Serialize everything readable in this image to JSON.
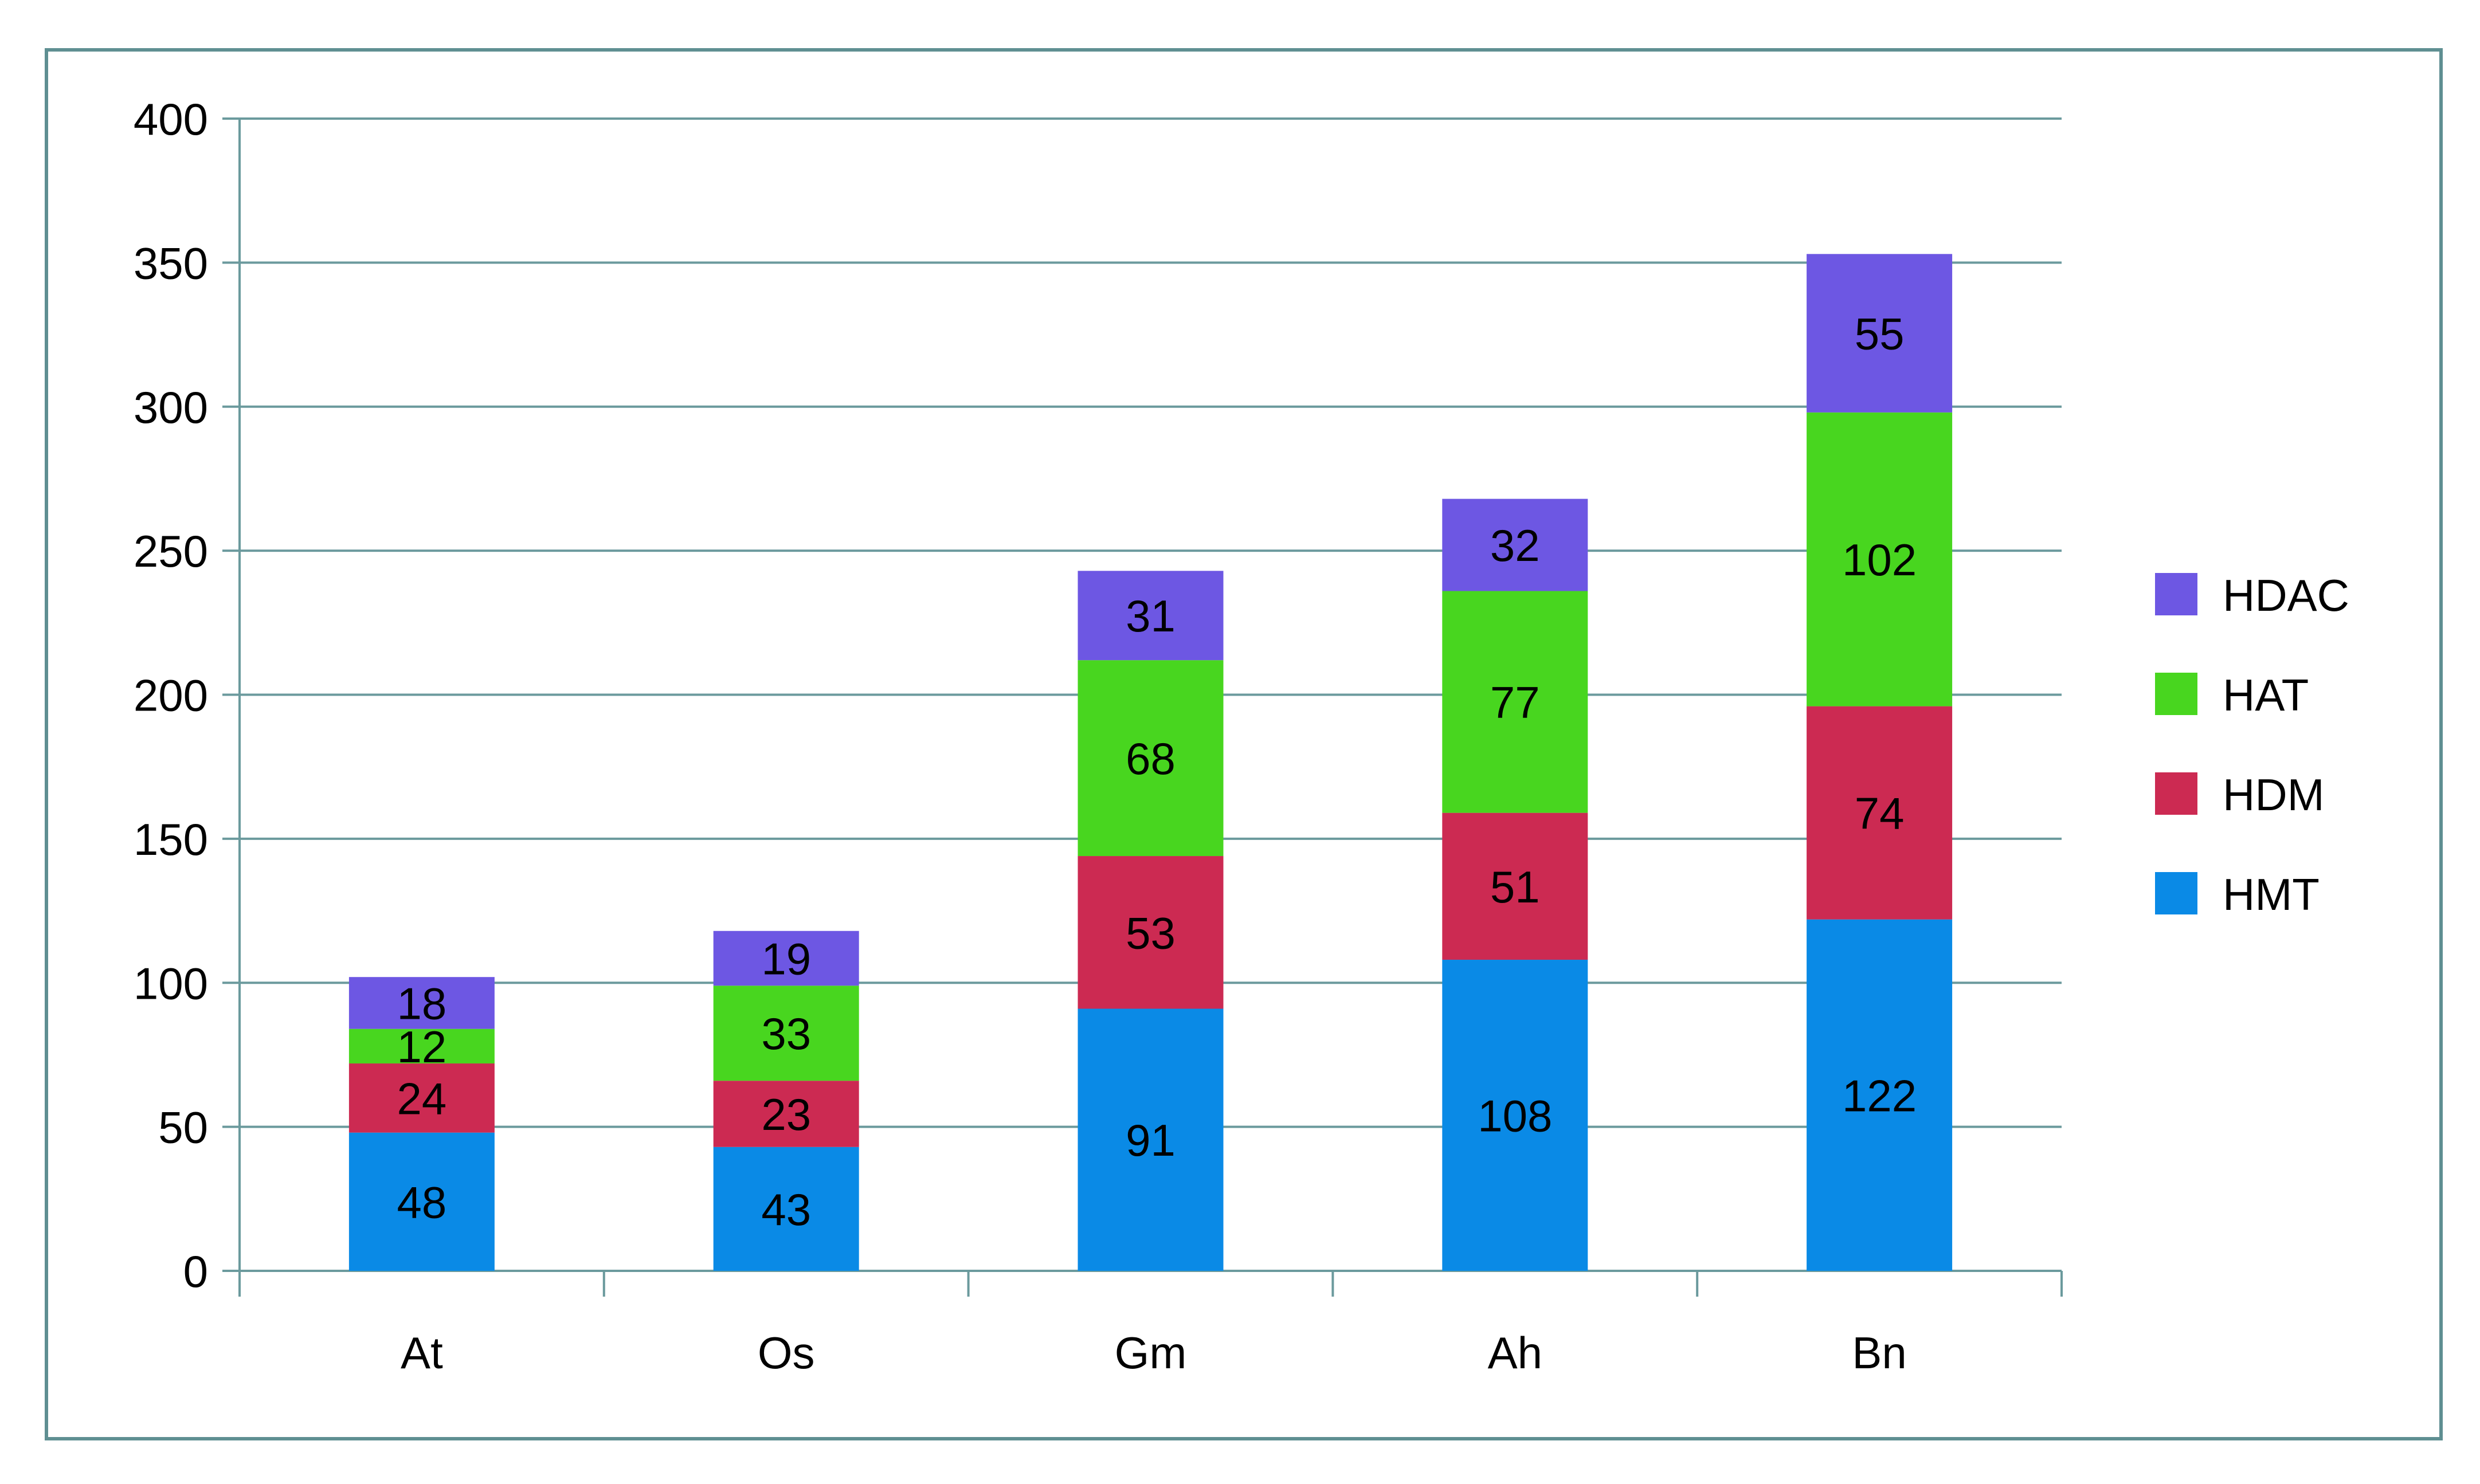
{
  "chart_data": {
    "type": "bar",
    "stacked": true,
    "categories": [
      "At",
      "Os",
      "Gm",
      "Ah",
      "Bn"
    ],
    "series": [
      {
        "name": "HMT",
        "color": "#0a8ae6",
        "values": [
          48,
          43,
          91,
          108,
          122
        ]
      },
      {
        "name": "HDM",
        "color": "#cc2a52",
        "values": [
          24,
          23,
          53,
          51,
          74
        ]
      },
      {
        "name": "HAT",
        "color": "#48d61f",
        "values": [
          12,
          33,
          68,
          77,
          102
        ]
      },
      {
        "name": "HDAC",
        "color": "#6d57e3",
        "values": [
          18,
          19,
          31,
          32,
          55
        ]
      }
    ],
    "ylim": [
      0,
      400
    ],
    "yticks": [
      0,
      50,
      100,
      150,
      200,
      250,
      300,
      350,
      400
    ],
    "grid": true,
    "legend": "right",
    "legend_order": [
      "HDAC",
      "HAT",
      "HDM",
      "HMT"
    ],
    "data_labels": true,
    "title": "",
    "xlabel": "",
    "ylabel": ""
  },
  "colors": {
    "frame": "#5f8f92",
    "grid": "#6b9a9d",
    "axis": "#6b9a9d",
    "text": "#000000"
  }
}
